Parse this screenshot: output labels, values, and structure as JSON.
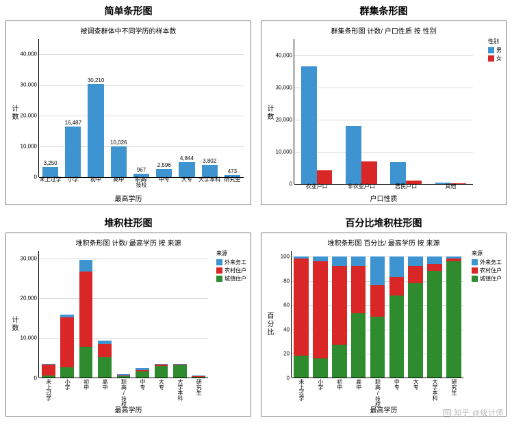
{
  "watermark": "知乎 @统计师",
  "colors": {
    "blue": "#3d94d1",
    "red": "#d92626",
    "green": "#2e8b2e",
    "grid": "#d9d9d9",
    "border": "#7a7a7a",
    "bg": "#ffffff",
    "text": "#000000"
  },
  "charts": {
    "simple": {
      "panel_title": "简单条形图",
      "subtitle": "被调查群体中不同学历的样本数",
      "ylabel": "计数",
      "xlabel": "最高学历",
      "type": "bar",
      "ylim": [
        0,
        45000
      ],
      "yticks": [
        0,
        10000,
        20000,
        30000,
        40000
      ],
      "ytick_labels": [
        "0",
        "10,000",
        "20,000",
        "30,000",
        "40,000"
      ],
      "categories": [
        "未上过学",
        "小学",
        "初中",
        "高中",
        "职高/技校",
        "中专",
        "大专",
        "大学本科",
        "研究生"
      ],
      "values": [
        3250,
        16487,
        30210,
        10026,
        967,
        2596,
        4844,
        3802,
        473
      ],
      "value_labels": [
        "3,250",
        "16,487",
        "30,210",
        "10,026",
        "967",
        "2,596",
        "4,844",
        "3,802",
        "473"
      ],
      "bar_color": "#3d94d1"
    },
    "grouped": {
      "panel_title": "群集条形图",
      "subtitle": "群集条形图 计数/ 户口性质 按 性别",
      "ylabel": "计数",
      "xlabel": "户口性质",
      "type": "grouped-bar",
      "ylim": [
        0,
        45000
      ],
      "yticks": [
        0,
        10000,
        20000,
        30000,
        40000
      ],
      "ytick_labels": [
        "0",
        "10,000",
        "20,000",
        "30,000",
        "40,000"
      ],
      "categories": [
        "农业户口",
        "非农业户口",
        "居民户口",
        "其他"
      ],
      "legend_title": "性别",
      "series": [
        {
          "name": "男",
          "color": "#3d94d1",
          "values": [
            36500,
            18000,
            6600,
            350
          ]
        },
        {
          "name": "女",
          "color": "#d92626",
          "values": [
            4200,
            6800,
            1000,
            120
          ]
        }
      ]
    },
    "stacked": {
      "panel_title": "堆积柱形图",
      "subtitle": "堆积条形图 计数/ 最高学历 按 来源",
      "ylabel": "计数",
      "xlabel": "最高学历",
      "type": "stacked-bar",
      "ylim": [
        0,
        32000
      ],
      "yticks": [
        0,
        10000,
        20000,
        30000
      ],
      "ytick_labels": [
        "0",
        "10,000",
        "20,000",
        "30,000"
      ],
      "categories": [
        "未上过学",
        "小学",
        "初中",
        "高中",
        "职高/技校",
        "中专",
        "大专",
        "大学本科",
        "研究生"
      ],
      "legend_title": "来源",
      "series": [
        {
          "name": "外来务工",
          "color": "#3d94d1"
        },
        {
          "name": "农村住户",
          "color": "#d92626"
        },
        {
          "name": "城镇住户",
          "color": "#2e8b2e"
        }
      ],
      "stacks": [
        {
          "green": 500,
          "red": 2900,
          "blue": 50
        },
        {
          "green": 2600,
          "red": 12600,
          "blue": 700
        },
        {
          "green": 7800,
          "red": 18900,
          "blue": 2900
        },
        {
          "green": 5200,
          "red": 3200,
          "blue": 900
        },
        {
          "green": 400,
          "red": 200,
          "blue": 300
        },
        {
          "green": 1600,
          "red": 300,
          "blue": 500
        },
        {
          "green": 3000,
          "red": 200,
          "blue": 300
        },
        {
          "green": 3100,
          "red": 100,
          "blue": 200
        },
        {
          "green": 400,
          "red": 20,
          "blue": 30
        }
      ]
    },
    "pct": {
      "panel_title": "百分比堆积柱形图",
      "subtitle": "堆积条形图 百分比/ 最高学历 按 来源",
      "ylabel": "百分比",
      "xlabel": "最高学历",
      "type": "stacked-pct-bar",
      "ylim": [
        0,
        105
      ],
      "yticks": [
        0,
        20,
        40,
        60,
        80,
        100
      ],
      "ytick_labels": [
        "0",
        "20",
        "40",
        "60",
        "80",
        "100"
      ],
      "categories": [
        "未上过学",
        "小学",
        "初中",
        "高中",
        "职高/技校",
        "中专",
        "大专",
        "大学本科",
        "研究生"
      ],
      "legend_title": "来源",
      "series": [
        {
          "name": "外来务工",
          "color": "#3d94d1"
        },
        {
          "name": "农村住户",
          "color": "#d92626"
        },
        {
          "name": "城镇住户",
          "color": "#2e8b2e"
        }
      ],
      "stacks_pct": [
        {
          "green": 18,
          "red": 80,
          "blue": 2
        },
        {
          "green": 16,
          "red": 80,
          "blue": 4
        },
        {
          "green": 27,
          "red": 65,
          "blue": 8
        },
        {
          "green": 53,
          "red": 39,
          "blue": 8
        },
        {
          "green": 50,
          "red": 26,
          "blue": 24
        },
        {
          "green": 68,
          "red": 15,
          "blue": 17
        },
        {
          "green": 78,
          "red": 14,
          "blue": 8
        },
        {
          "green": 88,
          "red": 6,
          "blue": 6
        },
        {
          "green": 96,
          "red": 2,
          "blue": 2
        }
      ]
    }
  }
}
